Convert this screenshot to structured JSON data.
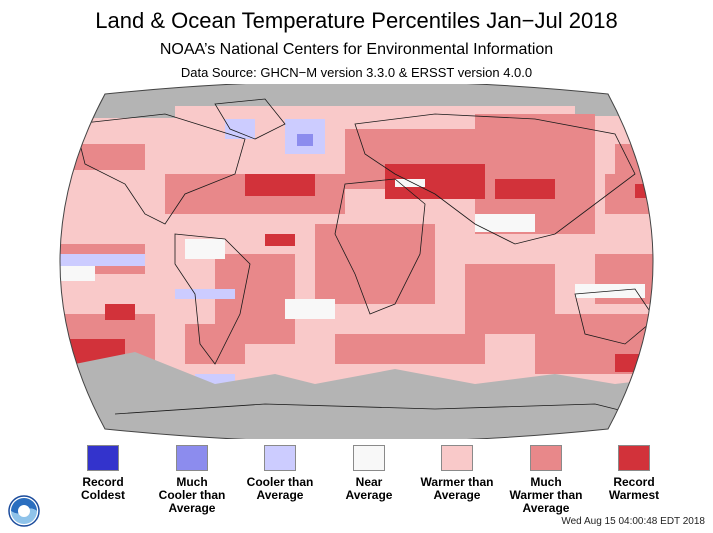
{
  "header": {
    "title": "Land & Ocean Temperature Percentiles Jan−Jul 2018",
    "subtitle": "NOAA’s National Centers for Environmental Information",
    "source": "Data Source: GHCN−M version 3.3.0 & ERSST version 4.0.0"
  },
  "map": {
    "projection": "Robinson",
    "colors": {
      "no_data": "#b4b4b4",
      "land_border": "#1a1a1a"
    }
  },
  "legend": [
    {
      "label": "Record\nColdest",
      "color": "#3333cc"
    },
    {
      "label": "Much\nCooler than\nAverage",
      "color": "#8c8cee"
    },
    {
      "label": "Cooler than\nAverage",
      "color": "#ccccff"
    },
    {
      "label": "Near\nAverage",
      "color": "#f8f8f8"
    },
    {
      "label": "Warmer than\nAverage",
      "color": "#f9c9c9"
    },
    {
      "label": "Much\nWarmer than\nAverage",
      "color": "#e8888a"
    },
    {
      "label": "Record\nWarmest",
      "color": "#d2323a"
    }
  ],
  "footer": {
    "logo_text": "NOAA",
    "timestamp": "Wed Aug 15 04:00:48 EDT 2018"
  }
}
